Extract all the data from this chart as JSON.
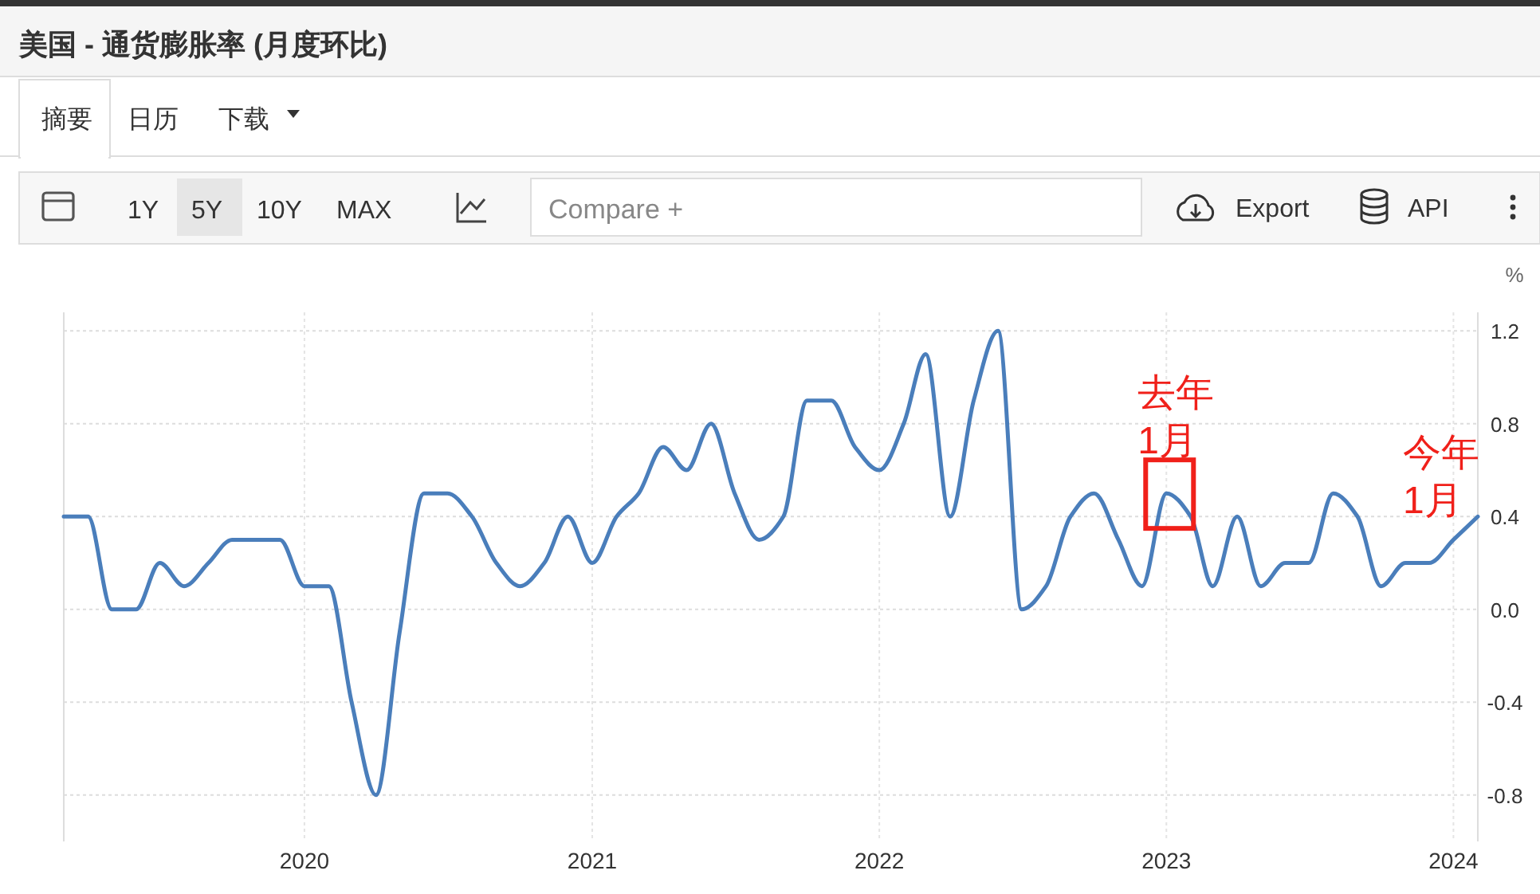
{
  "chart_data": {
    "type": "line",
    "title": "美国 - 通货膨胀率 (月度环比)",
    "ylabel": "%",
    "x": [
      "2019-03",
      "2019-04",
      "2019-05",
      "2019-06",
      "2019-07",
      "2019-08",
      "2019-09",
      "2019-10",
      "2019-11",
      "2019-12",
      "2020-01",
      "2020-02",
      "2020-03",
      "2020-04",
      "2020-05",
      "2020-06",
      "2020-07",
      "2020-08",
      "2020-09",
      "2020-10",
      "2020-11",
      "2020-12",
      "2021-01",
      "2021-02",
      "2021-03",
      "2021-04",
      "2021-05",
      "2021-06",
      "2021-07",
      "2021-08",
      "2021-09",
      "2021-10",
      "2021-11",
      "2021-12",
      "2022-01",
      "2022-02",
      "2022-03",
      "2022-04",
      "2022-05",
      "2022-06",
      "2022-07",
      "2022-08",
      "2022-09",
      "2022-10",
      "2022-11",
      "2022-12",
      "2023-01",
      "2023-02",
      "2023-03",
      "2023-04",
      "2023-05",
      "2023-06",
      "2023-07",
      "2023-08",
      "2023-09",
      "2023-10",
      "2023-11",
      "2023-12",
      "2024-01",
      "2024-02"
    ],
    "series": [
      {
        "color": "#4a7ebb",
        "values": [
          0.4,
          0.4,
          0.0,
          0.0,
          0.2,
          0.1,
          0.2,
          0.3,
          0.3,
          0.3,
          0.1,
          0.1,
          -0.4,
          -0.8,
          -0.1,
          0.5,
          0.5,
          0.4,
          0.2,
          0.1,
          0.2,
          0.4,
          0.2,
          0.4,
          0.5,
          0.7,
          0.6,
          0.8,
          0.5,
          0.3,
          0.4,
          0.9,
          0.9,
          0.7,
          0.6,
          0.8,
          1.1,
          0.4,
          0.9,
          1.2,
          0.0,
          0.1,
          0.4,
          0.5,
          0.3,
          0.1,
          0.5,
          0.4,
          0.1,
          0.4,
          0.1,
          0.2,
          0.2,
          0.5,
          0.4,
          0.1,
          0.2,
          0.2,
          0.3,
          0.4
        ]
      }
    ],
    "xlim": [
      "2019-03",
      "2024-02"
    ],
    "xticks": [
      {
        "value": "2020-01",
        "label": "2020"
      },
      {
        "value": "2021-01",
        "label": "2021"
      },
      {
        "value": "2022-01",
        "label": "2022"
      },
      {
        "value": "2023-01",
        "label": "2023"
      },
      {
        "value": "2024-01",
        "label": "2024"
      }
    ],
    "ylim": [
      -1.0,
      1.28
    ],
    "yticks": [
      -0.8,
      -0.4,
      {
        "value": 0,
        "label": "0.0"
      },
      0.4,
      0.8,
      1.2
    ],
    "grid": true,
    "marker": "none",
    "line_style": "solid",
    "annotations": [
      "摘要",
      "日历",
      "下载",
      "1Y",
      "5Y",
      "10Y",
      "MAX",
      "Compare +",
      "Export",
      "API",
      {
        "text": "去年\n1月",
        "x": "2023-01",
        "y": 0.5
      },
      "今年\n1月"
    ]
  }
}
